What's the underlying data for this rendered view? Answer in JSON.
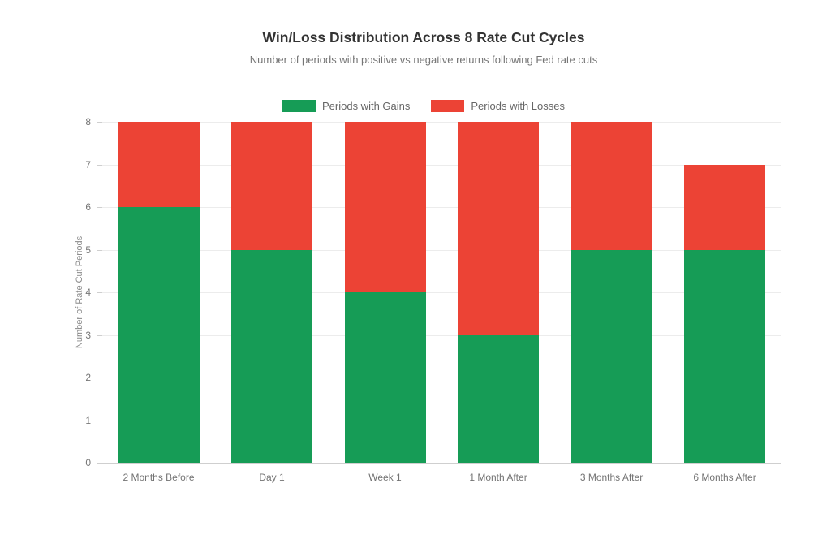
{
  "header": {
    "title": "Win/Loss Distribution Across 8 Rate Cut Cycles",
    "subtitle": "Number of periods with positive vs negative returns following Fed rate cuts"
  },
  "colors": {
    "gains": "#169c56",
    "losses": "#ec4335",
    "gridline": "#ececec",
    "axis_line": "#cfcfcf",
    "title_text": "#333333",
    "muted_text": "#757575"
  },
  "chart_data": {
    "type": "bar",
    "stacked": true,
    "title": "Win/Loss Distribution Across 8 Rate Cut Cycles",
    "subtitle": "Number of periods with positive vs negative returns following Fed rate cuts",
    "categories": [
      "2 Months Before",
      "Day 1",
      "Week 1",
      "1 Month After",
      "3 Months After",
      "6 Months After"
    ],
    "series": [
      {
        "name": "Periods with Gains",
        "color": "#169c56",
        "values": [
          6,
          5,
          4,
          3,
          5,
          5
        ]
      },
      {
        "name": "Periods with Losses",
        "color": "#ec4335",
        "values": [
          2,
          3,
          4,
          5,
          3,
          2
        ]
      }
    ],
    "totals": [
      8,
      8,
      8,
      8,
      8,
      7
    ],
    "xlabel": "",
    "ylabel": "Number of Rate Cut Periods",
    "ylim": [
      0,
      8
    ],
    "yticks": [
      0,
      1,
      2,
      3,
      4,
      5,
      6,
      7,
      8
    ],
    "grid": true,
    "legend_position": "top-center"
  }
}
